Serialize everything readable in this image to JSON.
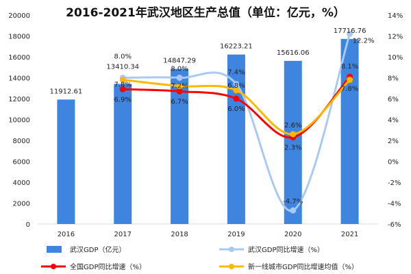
{
  "chart_data": {
    "type": "bar+line",
    "title": "2016-2021年武汉地区生产总值（单位：亿元，%）",
    "categories": [
      "2016",
      "2017",
      "2018",
      "2019",
      "2020",
      "2021"
    ],
    "left_axis": {
      "ylim": [
        0,
        20000
      ],
      "ticks": [
        0,
        2000,
        4000,
        6000,
        8000,
        10000,
        12000,
        14000,
        16000,
        18000,
        20000
      ]
    },
    "right_axis": {
      "ylim": [
        -6,
        14
      ],
      "ticks": [
        "-6%",
        "-4%",
        "-2%",
        "0%",
        "2%",
        "4%",
        "6%",
        "8%",
        "10%",
        "12%",
        "14%"
      ]
    },
    "bar_series": {
      "name": "武汉GDP（亿元）",
      "color": "#3f85e0",
      "values": [
        11912.61,
        13410.34,
        14847.29,
        16223.21,
        15616.06,
        17716.76
      ],
      "labels": [
        "11912.61",
        "13410.34",
        "14847.29",
        "16223.21",
        "15616.06",
        "17716.76"
      ]
    },
    "line_series": [
      {
        "name": "武汉GDP同比增速（%）",
        "color": "#a9c9f5",
        "values": [
          null,
          8.0,
          8.0,
          7.4,
          -4.7,
          12.2
        ],
        "labels": [
          "",
          "8.0%",
          "8.0%",
          "7.4%",
          "-4.7%",
          "12.2%"
        ]
      },
      {
        "name": "全国GDP同比增速（%）",
        "color": "#ff0000",
        "values": [
          null,
          6.9,
          6.7,
          6.0,
          2.3,
          8.1
        ],
        "labels": [
          "",
          "6.9%",
          "6.7%",
          "6.0%",
          "2.3%",
          "8.1%"
        ]
      },
      {
        "name": "新一线城市GDP同比增速均值（%）",
        "color": "#ffb800",
        "values": [
          null,
          7.8,
          7.2,
          6.8,
          2.6,
          7.8
        ],
        "labels": [
          "",
          "7.8%",
          "7.2%",
          "6.8%",
          "2.6%",
          "7.8%"
        ]
      }
    ],
    "legend_position": "bottom",
    "grid": false
  }
}
